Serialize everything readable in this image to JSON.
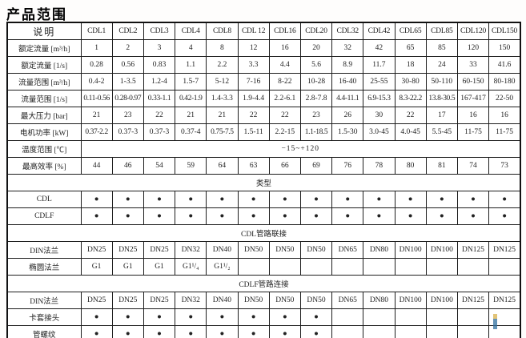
{
  "title": "产品范围",
  "watermark": {
    "top_color": "#d9b14a",
    "bottom_color": "#2f6f9f"
  },
  "table": {
    "columns": [
      "说明",
      "CDL1",
      "CDL2",
      "CDL3",
      "CDL4",
      "CDL8",
      "CDL 12",
      "CDL16",
      "CDL20",
      "CDL32",
      "CDL42",
      "CDL65",
      "CDL85",
      "CDL120",
      "CDL150"
    ],
    "rows": [
      {
        "type": "values",
        "label": "额定流量 [m³/h]",
        "values": [
          "1",
          "2",
          "3",
          "4",
          "8",
          "12",
          "16",
          "20",
          "32",
          "42",
          "65",
          "85",
          "120",
          "150"
        ]
      },
      {
        "type": "values",
        "label": "额定流量 [1/s]",
        "values": [
          "0.28",
          "0.56",
          "0.83",
          "1.1",
          "2.2",
          "3.3",
          "4.4",
          "5.6",
          "8.9",
          "11.7",
          "18",
          "24",
          "33",
          "41.6"
        ]
      },
      {
        "type": "values",
        "label": "流量范围 [m³/h]",
        "values": [
          "0.4-2",
          "1-3.5",
          "1.2-4",
          "1.5-7",
          "5-12",
          "7-16",
          "8-22",
          "10-28",
          "16-40",
          "25-55",
          "30-80",
          "50-110",
          "60-150",
          "80-180"
        ]
      },
      {
        "type": "values",
        "label": "流量范围 [1/s]",
        "values": [
          "0.11-0.56",
          "0.28-0.97",
          "0.33-1.1",
          "0.42-1.9",
          "1.4-3.3",
          "1.9-4.4",
          "2.2-6.1",
          "2.8-7.8",
          "4.4-11.1",
          "6.9-15.3",
          "8.3-22.2",
          "13.8-30.5",
          "167-417",
          "22-50"
        ]
      },
      {
        "type": "values",
        "label": "最大压力 [bar]",
        "values": [
          "21",
          "23",
          "22",
          "21",
          "21",
          "22",
          "22",
          "23",
          "26",
          "30",
          "22",
          "17",
          "16",
          "16"
        ]
      },
      {
        "type": "values",
        "label": "电机功率 [kW]",
        "values": [
          "0.37-2.2",
          "0.37-3",
          "0.37-3",
          "0.37-4",
          "0.75-7.5",
          "1.5-11",
          "2.2-15",
          "1.1-18.5",
          "1.5-30",
          "3.0-45",
          "4.0-45",
          "5.5-45",
          "11-75",
          "11-75"
        ]
      },
      {
        "type": "merged",
        "label": "温度范围 [℃]",
        "value": "−15~+120"
      },
      {
        "type": "values",
        "label": "最高效率 [%]",
        "values": [
          "44",
          "46",
          "54",
          "59",
          "64",
          "63",
          "66",
          "69",
          "76",
          "78",
          "80",
          "81",
          "74",
          "73"
        ]
      },
      {
        "type": "section",
        "label": "类型"
      },
      {
        "type": "values",
        "label": "CDL",
        "values": [
          "●",
          "●",
          "●",
          "●",
          "●",
          "●",
          "●",
          "●",
          "●",
          "●",
          "●",
          "●",
          "●",
          "●"
        ]
      },
      {
        "type": "values",
        "label": "CDLF",
        "values": [
          "●",
          "●",
          "●",
          "●",
          "●",
          "●",
          "●",
          "●",
          "●",
          "●",
          "●",
          "●",
          "●",
          "●"
        ]
      },
      {
        "type": "section",
        "label": "CDL管路联接"
      },
      {
        "type": "values",
        "label": "DIN法兰",
        "values": [
          "DN25",
          "DN25",
          "DN25",
          "DN32",
          "DN40",
          "DN50",
          "DN50",
          "DN50",
          "DN65",
          "DN80",
          "DN100",
          "DN100",
          "DN125",
          "DN125"
        ]
      },
      {
        "type": "values",
        "label": "椭圆法兰",
        "values": [
          "G1",
          "G1",
          "G1",
          "G1¹/₄",
          "G1¹/₂",
          "",
          "",
          "",
          "",
          "",
          "",
          "",
          "",
          ""
        ]
      },
      {
        "type": "section",
        "label": "CDLF管路连接"
      },
      {
        "type": "values",
        "label": "DIN法兰",
        "values": [
          "DN25",
          "DN25",
          "DN25",
          "DN32",
          "DN40",
          "DN50",
          "DN50",
          "DN50",
          "DN65",
          "DN80",
          "DN100",
          "DN100",
          "DN125",
          "DN125"
        ]
      },
      {
        "type": "values",
        "label": "卡套接头",
        "values": [
          "●",
          "●",
          "●",
          "●",
          "●",
          "●",
          "●",
          "●",
          "",
          "",
          "",
          "",
          "",
          ""
        ]
      },
      {
        "type": "values",
        "label": "管螺纹",
        "values": [
          "●",
          "●",
          "●",
          "●",
          "●",
          "●",
          "●",
          "●",
          "",
          "",
          "",
          "",
          "",
          ""
        ]
      }
    ]
  }
}
